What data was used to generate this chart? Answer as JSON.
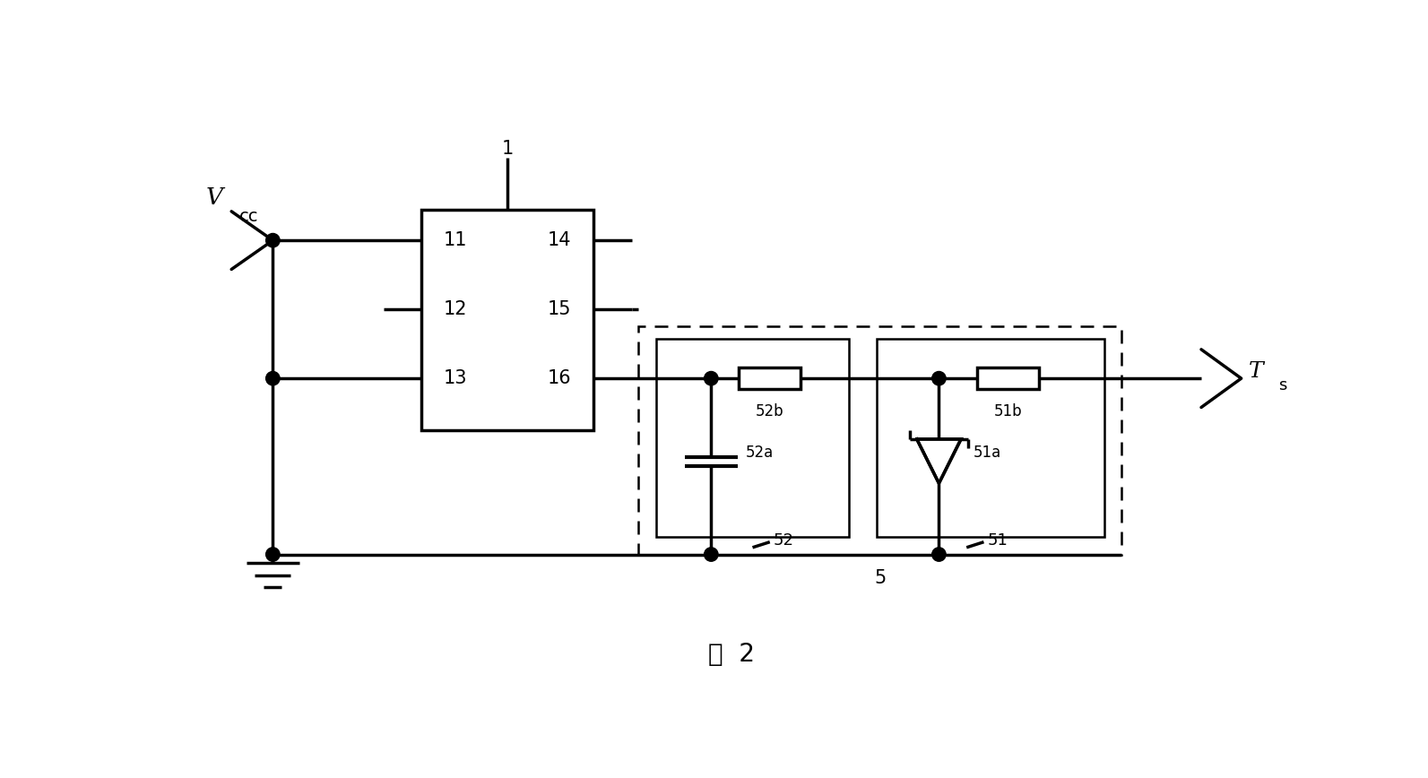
{
  "background": "#ffffff",
  "line_color": "#000000",
  "lw": 2.5,
  "lw_thick": 2.5,
  "title": "图  2",
  "title_fontsize": 20,
  "fig_width": 15.93,
  "fig_height": 8.68,
  "dpi": 100,
  "xlim": [
    0,
    16
  ],
  "ylim": [
    0,
    8.68
  ]
}
